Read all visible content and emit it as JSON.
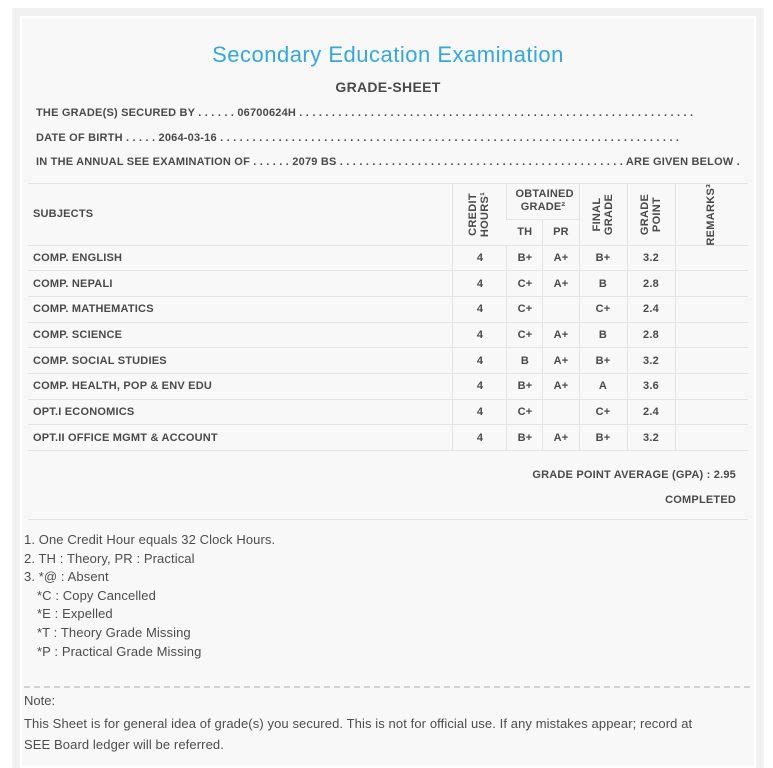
{
  "header": {
    "title": "Secondary Education Examination",
    "subtitle": "GRADE-SHEET"
  },
  "intro_lines": [
    "THE GRADE(S) SECURED BY . . . . . . 06700624H . . . . . . . . . . . . . . . . . . . . . . . . . . . . . . . . . . . . . . . . . . . . . . . . . . . . . . . . . . . . .",
    "DATE OF BIRTH . . . . . 2064-03-16 . . . . . . . . . . . . . . . . . . . . . . . . . . . . . . . . . . . . . . . . . . . . . . . . . . . . . . . . . . . . . . . . . . . . . . .",
    "IN THE ANNUAL SEE EXAMINATION OF . . . . . . 2079 BS . . . . . . . . . . . . . . . . . . . . . . . . . . . . . . . . . . . . . . . . . . . . ARE GIVEN BELOW . . ."
  ],
  "table": {
    "columns": {
      "subjects": "SUBJECTS",
      "credit_hours": "CREDIT\nHOURS¹",
      "obtained_grade": "OBTAINED GRADE²",
      "th": "TH",
      "pr": "PR",
      "final_grade": "FINAL\nGRADE",
      "grade_point": "GRADE\nPOINT",
      "remarks": "REMARKS³"
    },
    "rows": [
      {
        "subject": "COMP. ENGLISH",
        "credit_hours": "4",
        "th": "B+",
        "pr": "A+",
        "final_grade": "B+",
        "grade_point": "3.2",
        "remarks": ""
      },
      {
        "subject": "COMP. NEPALI",
        "credit_hours": "4",
        "th": "C+",
        "pr": "A+",
        "final_grade": "B",
        "grade_point": "2.8",
        "remarks": ""
      },
      {
        "subject": "COMP. MATHEMATICS",
        "credit_hours": "4",
        "th": "C+",
        "pr": "",
        "final_grade": "C+",
        "grade_point": "2.4",
        "remarks": ""
      },
      {
        "subject": "COMP. SCIENCE",
        "credit_hours": "4",
        "th": "C+",
        "pr": "A+",
        "final_grade": "B",
        "grade_point": "2.8",
        "remarks": ""
      },
      {
        "subject": "COMP. SOCIAL STUDIES",
        "credit_hours": "4",
        "th": "B",
        "pr": "A+",
        "final_grade": "B+",
        "grade_point": "3.2",
        "remarks": ""
      },
      {
        "subject": "COMP. HEALTH, POP & ENV EDU",
        "credit_hours": "4",
        "th": "B+",
        "pr": "A+",
        "final_grade": "A",
        "grade_point": "3.6",
        "remarks": ""
      },
      {
        "subject": "OPT.I ECONOMICS",
        "credit_hours": "4",
        "th": "C+",
        "pr": "",
        "final_grade": "C+",
        "grade_point": "2.4",
        "remarks": ""
      },
      {
        "subject": "OPT.II OFFICE MGMT & ACCOUNT",
        "credit_hours": "4",
        "th": "B+",
        "pr": "A+",
        "final_grade": "B+",
        "grade_point": "3.2",
        "remarks": ""
      }
    ],
    "gpa_label": "GRADE POINT AVERAGE (GPA) :",
    "gpa_value": "2.95",
    "status": "COMPLETED"
  },
  "footnotes": [
    {
      "text": "1. One Credit Hour equals 32 Clock Hours.",
      "indent": false
    },
    {
      "text": "2. TH : Theory, PR : Practical",
      "indent": false
    },
    {
      "text": "3. *@ : Absent",
      "indent": false
    },
    {
      "text": "*C : Copy Cancelled",
      "indent": true
    },
    {
      "text": "*E : Expelled",
      "indent": true
    },
    {
      "text": "*T : Theory Grade Missing",
      "indent": true
    },
    {
      "text": "*P : Practical Grade Missing",
      "indent": true
    }
  ],
  "note": {
    "label": "Note:",
    "text": "This Sheet is for general idea of grade(s) you secured. This is not for official use. If any mistakes appear; record at SEE Board ledger will be referred."
  },
  "colors": {
    "title_blue": "#31a8e1",
    "text_gray": "#4a4a4a",
    "panel_bg": "#f8f8f8",
    "frame_bg": "#f1f1f1",
    "border": "#e4e4e4"
  }
}
